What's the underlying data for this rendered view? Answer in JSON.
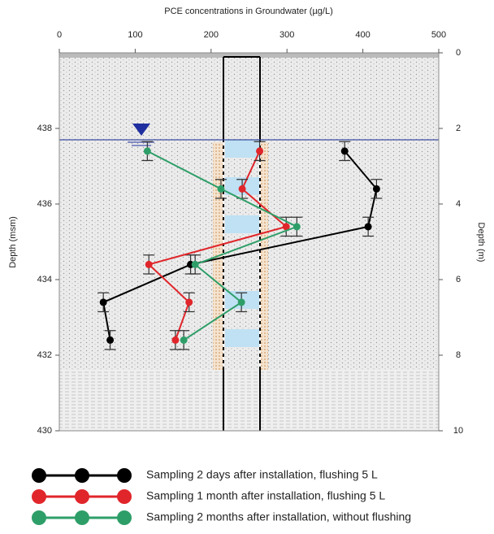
{
  "chart_data": {
    "type": "line",
    "title": "PCE concentrations in Groundwater (µg/L)",
    "y_label": "Depth (msm)",
    "y2_label": "Depth (m)",
    "xlim": [
      0,
      500
    ],
    "xticks": [
      0,
      100,
      200,
      300,
      400,
      500
    ],
    "ylim": [
      440,
      430
    ],
    "yticks": [
      430,
      432,
      434,
      436,
      438
    ],
    "y2lim": [
      0,
      10
    ],
    "y2ticks": [
      0,
      2,
      4,
      6,
      8,
      10
    ],
    "depths": [
      437.4,
      436.4,
      435.4,
      434.4,
      433.4,
      432.4
    ],
    "depth_error": 0.25,
    "series": [
      {
        "name": "Sampling 2 days after installation, flushing 5 L",
        "color": "#000000",
        "values": [
          376,
          418,
          407,
          173,
          58,
          67
        ]
      },
      {
        "name": "Sampling 1 month after installation, flushing 5 L",
        "color": "#e0262b",
        "values": [
          264,
          241,
          299,
          118,
          171,
          153
        ]
      },
      {
        "name": "Sampling 2 months after installation, without flushing",
        "color": "#2e9e68",
        "values": [
          116,
          213,
          313,
          179,
          240,
          164
        ]
      }
    ]
  }
}
